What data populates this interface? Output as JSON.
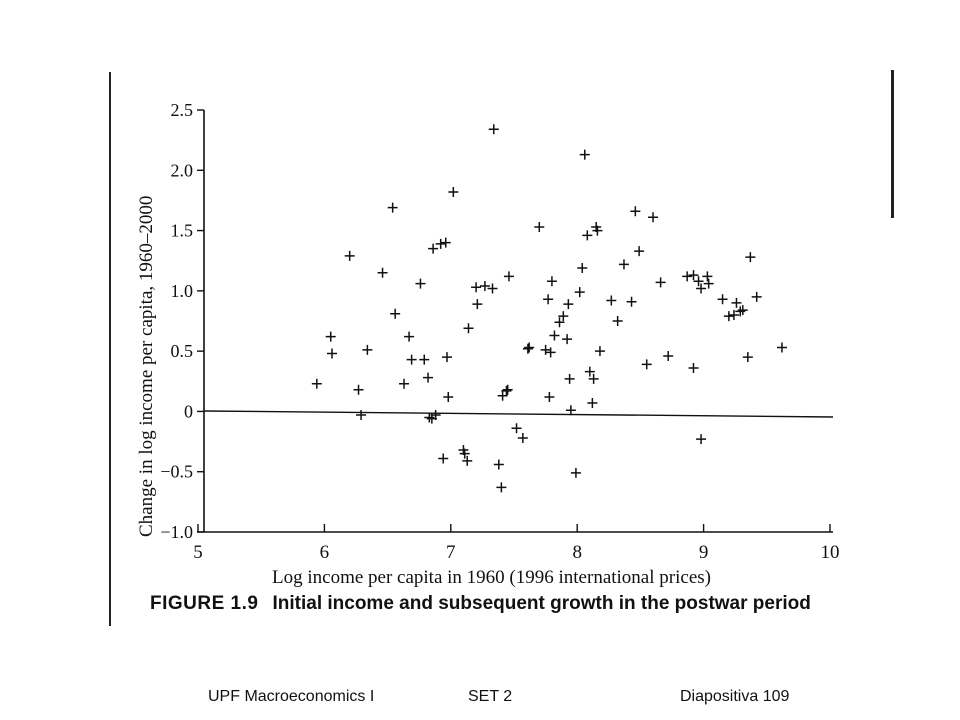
{
  "figure": {
    "number": "FIGURE 1.9",
    "caption": "Initial income and subsequent growth in the postwar period"
  },
  "footer": {
    "course": "UPF Macroeconomics I",
    "set": "SET 2",
    "slide": "Diapositiva 109"
  },
  "chart_data": {
    "type": "scatter",
    "title": "",
    "xlabel": "Log income per capita in 1960 (1996 international prices)",
    "ylabel": "Change in log income per capita, 1960–2000",
    "xlim": [
      5,
      10
    ],
    "ylim": [
      -1.0,
      2.5
    ],
    "xticks": [
      5,
      6,
      7,
      8,
      9,
      10
    ],
    "xtick_labels": [
      "5",
      "6",
      "7",
      "8",
      "9",
      "10"
    ],
    "yticks": [
      -1.0,
      -0.5,
      0,
      0.5,
      1.0,
      1.5,
      2.0,
      2.5
    ],
    "ytick_labels": [
      "−1.0",
      "−0.5",
      "0",
      "0.5",
      "1.0",
      "1.5",
      "2.0",
      "2.5"
    ],
    "marker": "+",
    "reference_line": {
      "y": 0
    },
    "points": [
      [
        5.94,
        0.23
      ],
      [
        6.05,
        0.62
      ],
      [
        6.06,
        0.48
      ],
      [
        6.2,
        1.29
      ],
      [
        6.27,
        0.18
      ],
      [
        6.29,
        -0.03
      ],
      [
        6.34,
        0.51
      ],
      [
        6.46,
        1.15
      ],
      [
        6.54,
        1.69
      ],
      [
        6.56,
        0.81
      ],
      [
        6.63,
        0.23
      ],
      [
        6.67,
        0.62
      ],
      [
        6.69,
        0.43
      ],
      [
        6.76,
        1.06
      ],
      [
        6.79,
        0.43
      ],
      [
        6.82,
        0.28
      ],
      [
        6.83,
        -0.05
      ],
      [
        6.85,
        -0.06
      ],
      [
        6.86,
        1.35
      ],
      [
        6.88,
        -0.03
      ],
      [
        6.92,
        1.39
      ],
      [
        6.94,
        -0.39
      ],
      [
        6.96,
        1.4
      ],
      [
        6.97,
        0.45
      ],
      [
        6.98,
        0.12
      ],
      [
        7.02,
        1.82
      ],
      [
        7.1,
        -0.32
      ],
      [
        7.11,
        -0.35
      ],
      [
        7.13,
        -0.41
      ],
      [
        7.14,
        0.69
      ],
      [
        7.2,
        1.03
      ],
      [
        7.21,
        0.89
      ],
      [
        7.27,
        1.04
      ],
      [
        7.33,
        1.02
      ],
      [
        7.34,
        2.34
      ],
      [
        7.38,
        -0.44
      ],
      [
        7.4,
        -0.63
      ],
      [
        7.41,
        0.13
      ],
      [
        7.44,
        0.17
      ],
      [
        7.45,
        0.18
      ],
      [
        7.46,
        1.12
      ],
      [
        7.52,
        -0.14
      ],
      [
        7.57,
        -0.22
      ],
      [
        7.61,
        0.52
      ],
      [
        7.62,
        0.53
      ],
      [
        7.7,
        1.53
      ],
      [
        7.75,
        0.51
      ],
      [
        7.77,
        0.93
      ],
      [
        7.78,
        0.12
      ],
      [
        7.79,
        0.49
      ],
      [
        7.8,
        1.08
      ],
      [
        7.82,
        0.63
      ],
      [
        7.86,
        0.74
      ],
      [
        7.89,
        0.79
      ],
      [
        7.92,
        0.6
      ],
      [
        7.93,
        0.89
      ],
      [
        7.94,
        0.27
      ],
      [
        7.95,
        0.01
      ],
      [
        7.99,
        -0.51
      ],
      [
        8.02,
        0.99
      ],
      [
        8.04,
        1.19
      ],
      [
        8.06,
        2.13
      ],
      [
        8.08,
        1.46
      ],
      [
        8.1,
        0.33
      ],
      [
        8.12,
        0.07
      ],
      [
        8.13,
        0.27
      ],
      [
        8.15,
        1.53
      ],
      [
        8.16,
        1.5
      ],
      [
        8.18,
        0.5
      ],
      [
        8.27,
        0.92
      ],
      [
        8.32,
        0.75
      ],
      [
        8.37,
        1.22
      ],
      [
        8.43,
        0.91
      ],
      [
        8.46,
        1.66
      ],
      [
        8.49,
        1.33
      ],
      [
        8.55,
        0.39
      ],
      [
        8.6,
        1.61
      ],
      [
        8.66,
        1.07
      ],
      [
        8.72,
        0.46
      ],
      [
        8.87,
        1.12
      ],
      [
        8.92,
        1.13
      ],
      [
        8.92,
        0.36
      ],
      [
        8.96,
        1.08
      ],
      [
        8.98,
        1.02
      ],
      [
        8.98,
        -0.23
      ],
      [
        9.03,
        1.12
      ],
      [
        9.04,
        1.06
      ],
      [
        9.15,
        0.93
      ],
      [
        9.2,
        0.79
      ],
      [
        9.24,
        0.8
      ],
      [
        9.26,
        0.9
      ],
      [
        9.29,
        0.83
      ],
      [
        9.31,
        0.84
      ],
      [
        9.35,
        0.45
      ],
      [
        9.37,
        1.28
      ],
      [
        9.42,
        0.95
      ],
      [
        9.62,
        0.53
      ]
    ]
  }
}
